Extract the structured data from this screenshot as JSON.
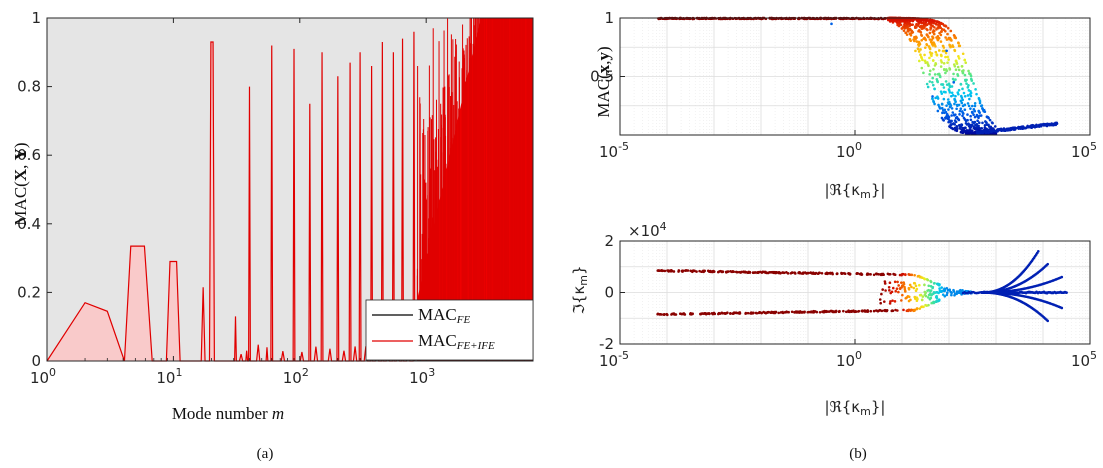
{
  "captions": {
    "a": "(a)",
    "b": "(b)"
  },
  "colors": {
    "fe": "#000000",
    "ife": "#e00000",
    "ife_fill": "#f9caca",
    "background_grey": "#e5e5e5"
  },
  "chart_data": [
    {
      "id": "a",
      "type": "area",
      "xscale": "log",
      "xlim": [
        1,
        7000
      ],
      "ylim": [
        0,
        1
      ],
      "xlabel": "Mode number m",
      "ylabel": "MAC(X, Y)",
      "xticks": [
        "10^0",
        "10^1",
        "10^2",
        "10^3"
      ],
      "yticks": [
        "0",
        "0.2",
        "0.4",
        "0.6",
        "0.8",
        "1"
      ],
      "legend": {
        "position": "bottom-right",
        "entries": [
          "MAC_FE",
          "MAC_FE+IFE"
        ]
      },
      "series": [
        {
          "name": "MAC_FE",
          "description": "equal to 1 for every mode (shown as grey-filled background)",
          "values": [
            1
          ]
        },
        {
          "name": "MAC_FE+IFE",
          "peaks": [
            {
              "x": 2.0,
              "y": 0.17
            },
            {
              "x": 3.0,
              "y": 0.145
            },
            {
              "x": 5.3,
              "y": 0.335
            },
            {
              "x": 9.8,
              "y": 0.29
            },
            {
              "x": 17.5,
              "y": 0.215
            },
            {
              "x": 20,
              "y": 0.93
            },
            {
              "x": 31,
              "y": 0.13
            },
            {
              "x": 38,
              "y": 0.03
            },
            {
              "x": 40,
              "y": 0.8
            },
            {
              "x": 55,
              "y": 0.04
            },
            {
              "x": 60,
              "y": 0.92
            },
            {
              "x": 90,
              "y": 0.91
            },
            {
              "x": 120,
              "y": 0.75
            },
            {
              "x": 150,
              "y": 0.9
            },
            {
              "x": 200,
              "y": 0.83
            },
            {
              "x": 250,
              "y": 0.87
            },
            {
              "x": 300,
              "y": 0.9
            },
            {
              "x": 370,
              "y": 0.86
            },
            {
              "x": 450,
              "y": 0.93
            },
            {
              "x": 550,
              "y": 0.9
            },
            {
              "x": 650,
              "y": 0.94
            },
            {
              "x": 800,
              "y": 0.96
            }
          ]
        }
      ]
    },
    {
      "id": "b-top",
      "type": "scatter",
      "xscale": "log",
      "xlim": [
        1e-05,
        100000
      ],
      "ylim": [
        0,
        1
      ],
      "xlabel": "|ℜ{κm}|",
      "ylabel": "MAC(x,y)",
      "xticks": [
        "10^-5",
        "10^0",
        "10^5"
      ],
      "yticks": [
        "0.5",
        "1"
      ],
      "grid": true,
      "description": "MAC stays at 1 until |Re κ| ≈ 10, then drops to near 0 around 100–1000; colour varies dark red → yellow → cyan → dark blue"
    },
    {
      "id": "b-bottom",
      "type": "scatter",
      "xscale": "log",
      "xlim": [
        1e-05,
        100000
      ],
      "ylim": [
        -2,
        2
      ],
      "xlabel": "|ℜ{κm}|",
      "ylabel": "ℑ{κm}",
      "yexponent": "×10^4",
      "xticks": [
        "10^-5",
        "10^0",
        "10^5"
      ],
      "yticks": [
        "-2",
        "0",
        "2"
      ],
      "grid": true,
      "description": "two branches near ±0.8×10^4 converging to 0 around 10–100, then blue branches fanning out toward ±1.6×10^4 near 10^4"
    }
  ]
}
